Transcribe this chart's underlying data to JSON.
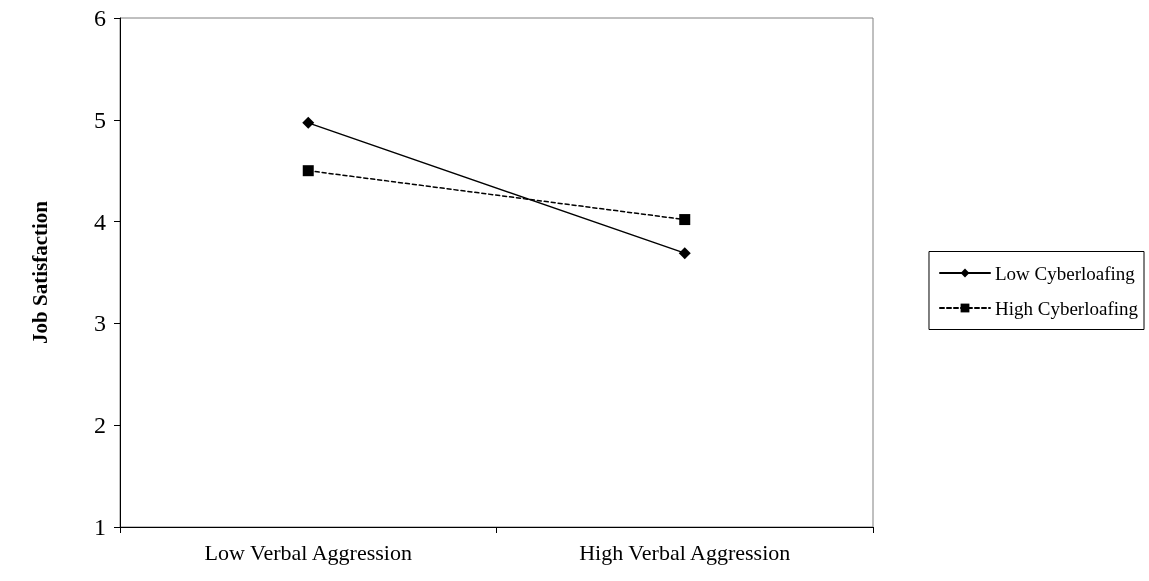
{
  "chart_data": {
    "type": "line",
    "ylabel": "Job Satisfaction",
    "categories": [
      "Low Verbal Aggression",
      "High Verbal Aggression"
    ],
    "series": [
      {
        "name": "Low Cyberloafing",
        "color": "#000000",
        "values": [
          4.97,
          3.69
        ],
        "marker": "diamond",
        "line_style": "solid"
      },
      {
        "name": "High Cyberloafing",
        "color": "#000000",
        "values": [
          4.5,
          4.02
        ],
        "marker": "square",
        "line_style": "dashed"
      }
    ],
    "ylim": [
      1,
      6
    ],
    "yticks": [
      1,
      2,
      3,
      4,
      5,
      6
    ],
    "grid": false,
    "legend": "right"
  }
}
